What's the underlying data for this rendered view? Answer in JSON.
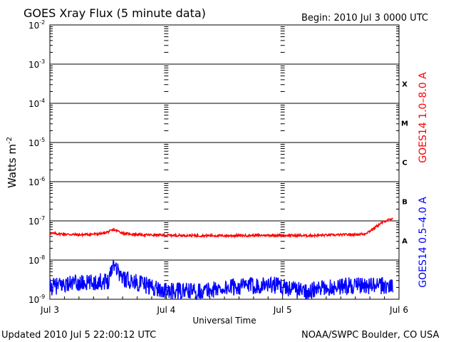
{
  "header": {
    "title": "GOES Xray Flux (5 minute data)",
    "begin": "Begin:  2010 Jul 3 0000 UTC"
  },
  "footer": {
    "updated": "Updated 2010 Jul  5 22:00:12 UTC",
    "credit": "NOAA/SWPC Boulder, CO USA"
  },
  "colors": {
    "long": "#ff0000",
    "short": "#0000ff",
    "axis": "#000000"
  },
  "chart_data": {
    "type": "line",
    "title": "GOES Xray Flux (5 minute data)",
    "xlabel": "Universal Time",
    "ylabel": "Watts m",
    "ylabel_sup": "-2",
    "yscale": "log",
    "ylim": [
      1e-09,
      0.01
    ],
    "xlim_days": [
      0,
      3
    ],
    "x_ticks": [
      {
        "day": 0,
        "label": "Jul 3"
      },
      {
        "day": 1,
        "label": "Jul 4"
      },
      {
        "day": 2,
        "label": "Jul 5"
      },
      {
        "day": 3,
        "label": "Jul 6"
      }
    ],
    "y_ticks": [
      {
        "exp": -9,
        "label": "10",
        "sup": "-9"
      },
      {
        "exp": -8,
        "label": "10",
        "sup": "-8"
      },
      {
        "exp": -7,
        "label": "10",
        "sup": "-7"
      },
      {
        "exp": -6,
        "label": "10",
        "sup": "-6"
      },
      {
        "exp": -5,
        "label": "10",
        "sup": "-5"
      },
      {
        "exp": -4,
        "label": "10",
        "sup": "-4"
      },
      {
        "exp": -3,
        "label": "10",
        "sup": "-3"
      },
      {
        "exp": -2,
        "label": "10",
        "sup": "-2"
      }
    ],
    "flare_classes": [
      {
        "label": "A",
        "exp": -8
      },
      {
        "label": "B",
        "exp": -7
      },
      {
        "label": "C",
        "exp": -6
      },
      {
        "label": "M",
        "exp": -5
      },
      {
        "label": "X",
        "exp": -4
      }
    ],
    "grid": "horizontal at each decade",
    "series": [
      {
        "name": "GOES14 1.0–8.0 A",
        "color": "#ff0000",
        "x_days": [
          0,
          0.25,
          0.45,
          0.55,
          0.65,
          0.8,
          1.0,
          1.3,
          1.6,
          1.9,
          2.2,
          2.5,
          2.7,
          2.75,
          2.8,
          2.85,
          2.9,
          2.95
        ],
        "values": [
          4.8e-08,
          4.4e-08,
          4.7e-08,
          5.9e-08,
          4.7e-08,
          4.4e-08,
          4.3e-08,
          4.2e-08,
          4.2e-08,
          4.3e-08,
          4.2e-08,
          4.4e-08,
          4.6e-08,
          5.5e-08,
          7e-08,
          8.8e-08,
          1.05e-07,
          1.1e-07
        ]
      },
      {
        "name": "GOES14 0.5–4.0 A",
        "color": "#0000ff",
        "x_days": [
          0,
          0.15,
          0.35,
          0.5,
          0.55,
          0.62,
          0.8,
          1.0,
          1.3,
          1.6,
          1.9,
          2.2,
          2.5,
          2.8,
          2.95
        ],
        "values": [
          2e-09,
          2.5e-09,
          2.6e-09,
          3e-09,
          9e-09,
          3.5e-09,
          2.4e-09,
          1.6e-09,
          1.6e-09,
          2.1e-09,
          2.4e-09,
          1.6e-09,
          2.2e-09,
          2.2e-09,
          2.2e-09
        ]
      }
    ]
  }
}
